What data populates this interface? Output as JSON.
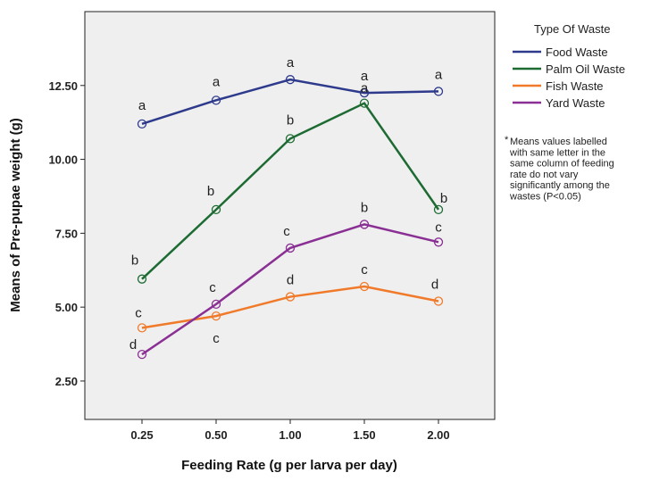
{
  "chart_data": {
    "type": "line",
    "title": "",
    "xlabel": "Feeding Rate (g per larva per day)",
    "ylabel": "Means of Pre-pupae weight (g)",
    "categories": [
      "0.25",
      "0.50",
      "1.00",
      "1.50",
      "2.00"
    ],
    "yticks": [
      "2.50",
      "5.00",
      "7.50",
      "10.00",
      "12.50"
    ],
    "ylim": [
      1.2,
      15.0
    ],
    "grid": false,
    "legend": {
      "title": "Type Of Waste",
      "position": "right"
    },
    "series": [
      {
        "name": "Food Waste",
        "color": "#2e3a8c",
        "values": [
          11.2,
          12.0,
          12.7,
          12.25,
          12.3
        ],
        "letters": [
          "a",
          "a",
          "a",
          "a",
          "a"
        ]
      },
      {
        "name": "Palm Oil Waste",
        "color": "#1d6b33",
        "values": [
          5.95,
          8.3,
          10.7,
          11.9,
          8.3
        ],
        "letters": [
          "b",
          "b",
          "b",
          "a",
          "b"
        ]
      },
      {
        "name": "Fish Waste",
        "color": "#f07a2a",
        "values": [
          4.3,
          4.7,
          5.35,
          5.7,
          5.2
        ],
        "letters": [
          "c",
          "c",
          "d",
          "c",
          "d"
        ]
      },
      {
        "name": "Yard Waste",
        "color": "#8a2f93",
        "values": [
          3.4,
          5.1,
          7.0,
          7.8,
          7.2
        ],
        "letters": [
          "d",
          "c",
          "c",
          "b",
          "c"
        ]
      }
    ],
    "annotation": {
      "bullet": "*",
      "lines": [
        "Means values labelled",
        "with same letter in the",
        "same column of feeding",
        "rate do not vary",
        "significantly among the",
        "wastes (P<0.05)"
      ]
    }
  }
}
